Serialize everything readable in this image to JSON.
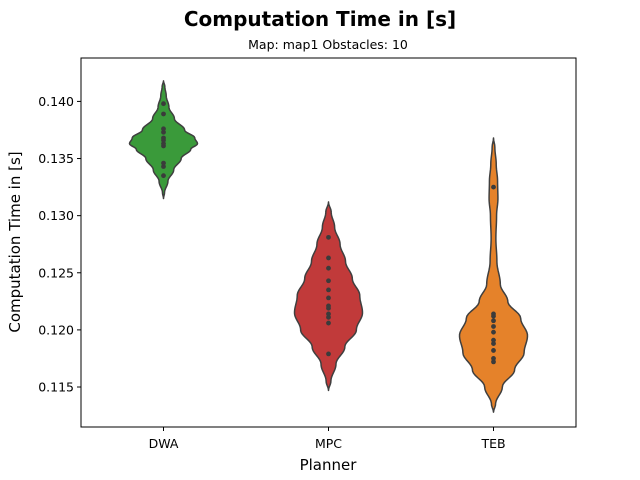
{
  "chart_data": {
    "type": "violin",
    "title": "Computation Time in [s]",
    "subtitle": "Map: map1 Obstacles: 10",
    "xlabel": "Planner",
    "ylabel": "Computation Time in [s]",
    "ylim": [
      0.1115,
      0.1438
    ],
    "yticks": [
      0.115,
      0.12,
      0.125,
      0.13,
      0.135,
      0.14
    ],
    "ytick_labels": [
      "0.115",
      "0.120",
      "0.125",
      "0.130",
      "0.135",
      "0.140"
    ],
    "grid": false,
    "categories": [
      "DWA",
      "MPC",
      "TEB"
    ],
    "series": [
      {
        "category": "DWA",
        "color": "#3a9a3a",
        "points": [
          0.1335,
          0.1343,
          0.1346,
          0.1361,
          0.1363,
          0.1366,
          0.1368,
          0.1373,
          0.1376,
          0.1389,
          0.1398
        ],
        "range": [
          0.1315,
          0.1418
        ],
        "profile": [
          [
            0.1315,
            0.0
          ],
          [
            0.132,
            0.03
          ],
          [
            0.133,
            0.13
          ],
          [
            0.134,
            0.3
          ],
          [
            0.135,
            0.52
          ],
          [
            0.1358,
            0.8
          ],
          [
            0.1363,
            1.0
          ],
          [
            0.1368,
            0.92
          ],
          [
            0.1375,
            0.62
          ],
          [
            0.1385,
            0.32
          ],
          [
            0.1395,
            0.16
          ],
          [
            0.1405,
            0.08
          ],
          [
            0.1413,
            0.04
          ],
          [
            0.1418,
            0.0
          ]
        ]
      },
      {
        "category": "MPC",
        "color": "#c13a3a",
        "points": [
          0.1179,
          0.1206,
          0.1211,
          0.1214,
          0.1219,
          0.1221,
          0.1228,
          0.1235,
          0.1243,
          0.1254,
          0.1263,
          0.1281
        ],
        "range": [
          0.1147,
          0.1312
        ],
        "profile": [
          [
            0.1147,
            0.0
          ],
          [
            0.1155,
            0.07
          ],
          [
            0.117,
            0.22
          ],
          [
            0.1185,
            0.48
          ],
          [
            0.12,
            0.82
          ],
          [
            0.1215,
            1.0
          ],
          [
            0.123,
            0.92
          ],
          [
            0.1245,
            0.7
          ],
          [
            0.126,
            0.5
          ],
          [
            0.1275,
            0.34
          ],
          [
            0.129,
            0.18
          ],
          [
            0.1303,
            0.08
          ],
          [
            0.1312,
            0.0
          ]
        ]
      },
      {
        "category": "TEB",
        "color": "#e5822a",
        "points": [
          0.1172,
          0.1175,
          0.1182,
          0.1188,
          0.1191,
          0.1198,
          0.1203,
          0.1208,
          0.1212,
          0.1214,
          0.1325
        ],
        "range": [
          0.1128,
          0.1368
        ],
        "profile": [
          [
            0.1128,
            0.0
          ],
          [
            0.1135,
            0.06
          ],
          [
            0.115,
            0.26
          ],
          [
            0.1165,
            0.62
          ],
          [
            0.118,
            0.9
          ],
          [
            0.1195,
            1.0
          ],
          [
            0.121,
            0.8
          ],
          [
            0.1225,
            0.42
          ],
          [
            0.124,
            0.2
          ],
          [
            0.126,
            0.1
          ],
          [
            0.128,
            0.07
          ],
          [
            0.13,
            0.09
          ],
          [
            0.1315,
            0.13
          ],
          [
            0.133,
            0.12
          ],
          [
            0.1345,
            0.08
          ],
          [
            0.136,
            0.04
          ],
          [
            0.1368,
            0.0
          ]
        ]
      }
    ],
    "point_color": "#3b3b3b",
    "outline_color": "#3f3f3f"
  }
}
